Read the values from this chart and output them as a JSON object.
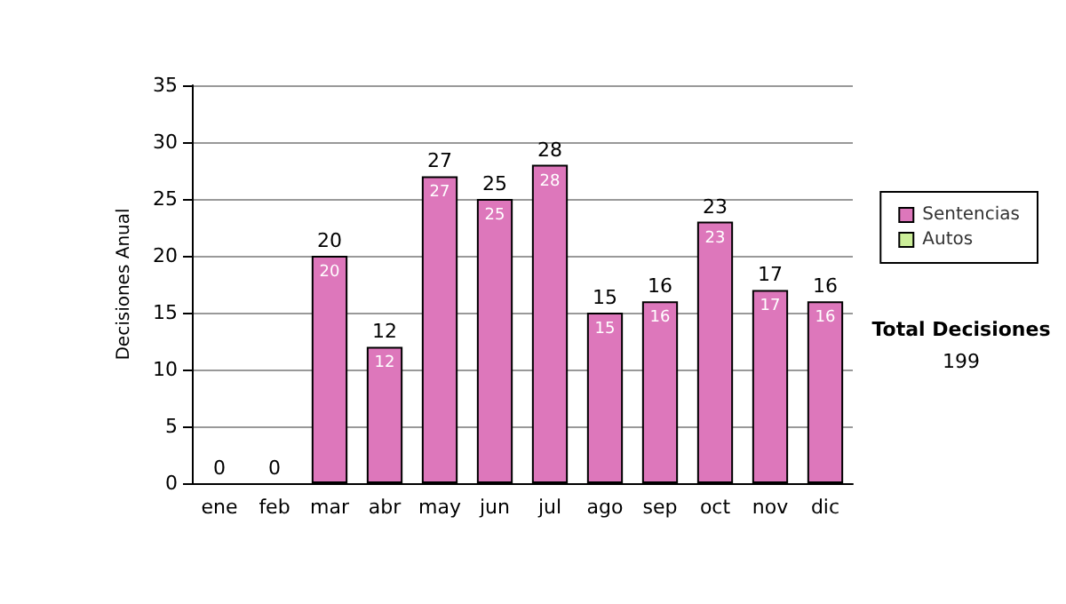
{
  "chart_data": {
    "type": "bar",
    "stacked": true,
    "ylabel": "Decisiones Anual",
    "categories": [
      "ene",
      "feb",
      "mar",
      "abr",
      "may",
      "jun",
      "jul",
      "ago",
      "sep",
      "oct",
      "nov",
      "dic"
    ],
    "series": [
      {
        "name": "Sentencias",
        "color": "#dd77bb",
        "values": [
          0,
          0,
          20,
          12,
          27,
          25,
          28,
          15,
          16,
          23,
          17,
          16
        ],
        "value_labels": [
          null,
          null,
          "20",
          "12",
          "27",
          "25",
          "28",
          "15",
          "16",
          "23",
          "17",
          "16"
        ]
      },
      {
        "name": "Autos",
        "color": "#ccee99",
        "values": [
          0,
          0,
          0,
          0,
          0,
          0,
          0,
          0,
          0,
          0,
          0,
          0
        ]
      }
    ],
    "totals": [
      "0",
      "0",
      "20",
      "12",
      "27",
      "25",
      "28",
      "15",
      "16",
      "23",
      "17",
      "16"
    ],
    "ylim": [
      0,
      35
    ],
    "yticks": [
      0,
      5,
      10,
      15,
      20,
      25,
      30,
      35
    ],
    "grid": "y",
    "legend": "right",
    "annotations": [
      "Total Decisiones",
      "199"
    ]
  }
}
